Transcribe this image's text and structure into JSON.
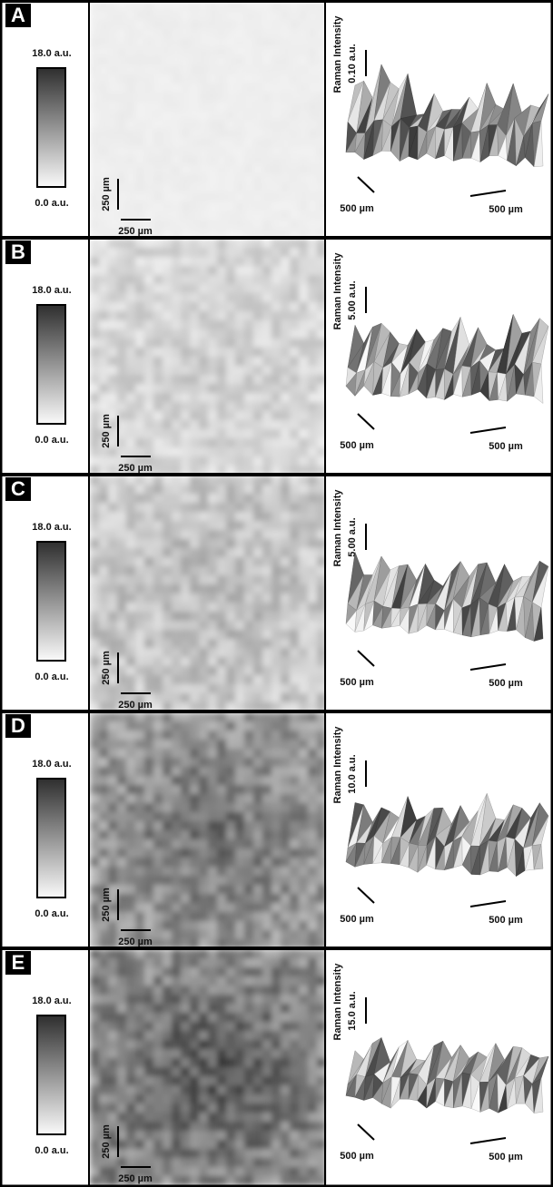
{
  "panels": [
    {
      "label": "A",
      "colorbar_max": "18.0 a.u.",
      "colorbar_min": "0.0 a.u.",
      "map_scale_vertical": "250 µm",
      "map_scale_horizontal": "250 µm",
      "surface_axis_title": "Raman Intensity",
      "surface_z_scale": "0.10 a.u.",
      "surface_scale_left": "500 µm",
      "surface_scale_right": "500 µm"
    },
    {
      "label": "B",
      "colorbar_max": "18.0 a.u.",
      "colorbar_min": "0.0 a.u.",
      "map_scale_vertical": "250 µm",
      "map_scale_horizontal": "250 µm",
      "surface_axis_title": "Raman Intensity",
      "surface_z_scale": "5.00 a.u.",
      "surface_scale_left": "500 µm",
      "surface_scale_right": "500 µm"
    },
    {
      "label": "C",
      "colorbar_max": "18.0 a.u.",
      "colorbar_min": "0.0 a.u.",
      "map_scale_vertical": "250 µm",
      "map_scale_horizontal": "250 µm",
      "surface_axis_title": "Raman Intensity",
      "surface_z_scale": "5.00 a.u.",
      "surface_scale_left": "500 µm",
      "surface_scale_right": "500 µm"
    },
    {
      "label": "D",
      "colorbar_max": "18.0 a.u.",
      "colorbar_min": "0.0 a.u.",
      "map_scale_vertical": "250 µm",
      "map_scale_horizontal": "250 µm",
      "surface_axis_title": "Raman Intensity",
      "surface_z_scale": "10.0 a.u.",
      "surface_scale_left": "500 µm",
      "surface_scale_right": "500 µm"
    },
    {
      "label": "E",
      "colorbar_max": "18.0 a.u.",
      "colorbar_min": "0.0 a.u.",
      "map_scale_vertical": "250 µm",
      "map_scale_horizontal": "250 µm",
      "surface_axis_title": "Raman Intensity",
      "surface_z_scale": "15.0 a.u.",
      "surface_scale_left": "500 µm",
      "surface_scale_right": "500 µm"
    }
  ]
}
